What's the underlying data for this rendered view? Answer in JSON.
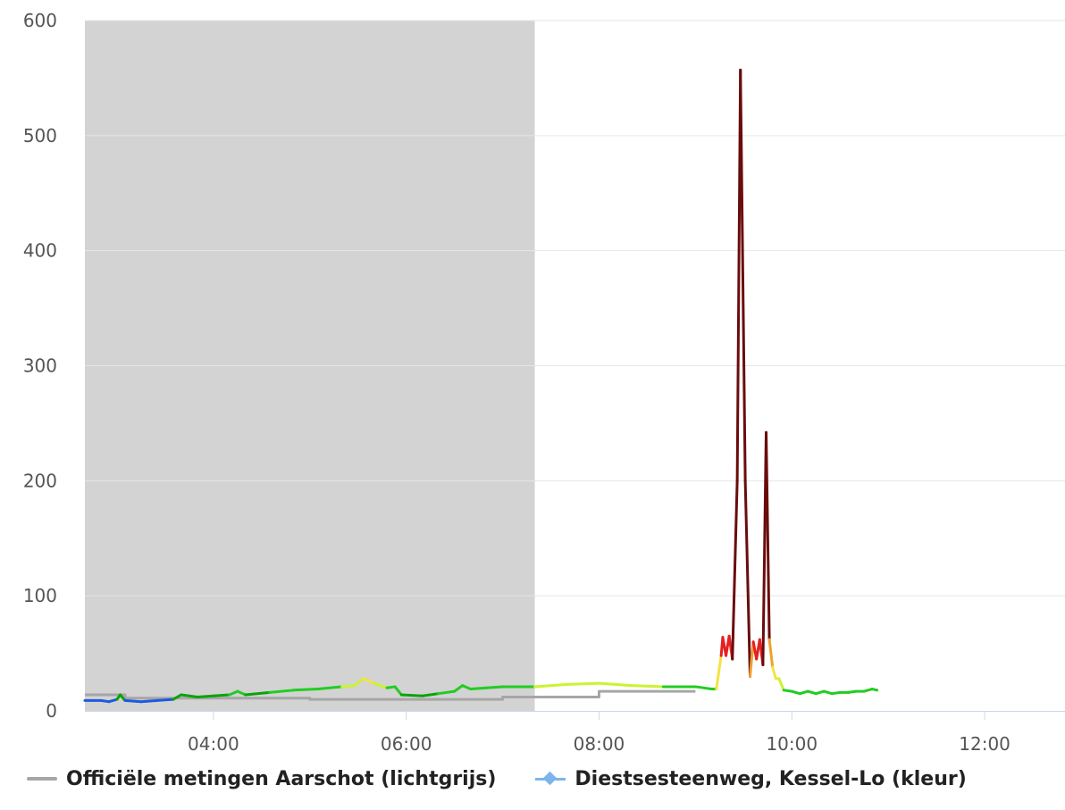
{
  "chart_data": {
    "type": "line",
    "title": "",
    "xlabel": "",
    "ylabel": "",
    "xlim": [
      "02:40",
      "12:50"
    ],
    "ylim": [
      0,
      600
    ],
    "y_ticks": [
      0,
      100,
      200,
      300,
      400,
      500,
      600
    ],
    "x_ticks": [
      "04:00",
      "06:00",
      "08:00",
      "10:00",
      "12:00"
    ],
    "grid": true,
    "night_band": {
      "from": "02:40",
      "to": "07:20",
      "color": "#d3d3d3"
    },
    "legend_position": "bottom",
    "series": [
      {
        "name": "Officiële metingen Aarschot (lichtgrijs)",
        "color": "#a6a6a6",
        "step": true,
        "points": [
          [
            "02:40",
            14
          ],
          [
            "03:05",
            14
          ],
          [
            "03:05",
            11
          ],
          [
            "05:00",
            11
          ],
          [
            "05:00",
            10
          ],
          [
            "07:00",
            10
          ],
          [
            "07:00",
            12
          ],
          [
            "08:00",
            12
          ],
          [
            "08:00",
            17
          ],
          [
            "09:00",
            17
          ]
        ]
      },
      {
        "name": "Diestsesteenweg, Kessel-Lo (kleur)",
        "marker_color": "#7cb5ec",
        "color_scale": [
          {
            "max": 10,
            "color": "#1a5be0"
          },
          {
            "max": 15,
            "color": "#0aa30a"
          },
          {
            "max": 21,
            "color": "#22cc22"
          },
          {
            "max": 25,
            "color": "#ccf230"
          },
          {
            "max": 35,
            "color": "#f2e442"
          },
          {
            "max": 50,
            "color": "#f0a030"
          },
          {
            "max": 70,
            "color": "#e52020"
          },
          {
            "max": 10000,
            "color": "#6a0c0c"
          }
        ],
        "points": [
          [
            "02:40",
            9
          ],
          [
            "02:50",
            9
          ],
          [
            "02:55",
            8
          ],
          [
            "03:00",
            10
          ],
          [
            "03:02",
            14
          ],
          [
            "03:05",
            9
          ],
          [
            "03:15",
            8
          ],
          [
            "03:25",
            9
          ],
          [
            "03:35",
            10
          ],
          [
            "03:40",
            14
          ],
          [
            "03:50",
            12
          ],
          [
            "04:00",
            13
          ],
          [
            "04:10",
            14
          ],
          [
            "04:15",
            17
          ],
          [
            "04:20",
            14
          ],
          [
            "04:35",
            16
          ],
          [
            "04:50",
            18
          ],
          [
            "05:05",
            19
          ],
          [
            "05:20",
            21
          ],
          [
            "05:28",
            22
          ],
          [
            "05:33",
            28
          ],
          [
            "05:40",
            24
          ],
          [
            "05:48",
            20
          ],
          [
            "05:53",
            21
          ],
          [
            "05:57",
            14
          ],
          [
            "06:10",
            13
          ],
          [
            "06:20",
            15
          ],
          [
            "06:30",
            17
          ],
          [
            "06:35",
            22
          ],
          [
            "06:40",
            19
          ],
          [
            "06:50",
            20
          ],
          [
            "07:00",
            21
          ],
          [
            "07:20",
            21
          ],
          [
            "07:40",
            23
          ],
          [
            "08:00",
            24
          ],
          [
            "08:20",
            22
          ],
          [
            "08:40",
            21
          ],
          [
            "09:00",
            21
          ],
          [
            "09:10",
            19
          ],
          [
            "09:13",
            19
          ],
          [
            "09:16",
            48
          ],
          [
            "09:17",
            64
          ],
          [
            "09:19",
            48
          ],
          [
            "09:21",
            65
          ],
          [
            "09:23",
            45
          ],
          [
            "09:26",
            200
          ],
          [
            "09:28",
            557
          ],
          [
            "09:31",
            200
          ],
          [
            "09:34",
            30
          ],
          [
            "09:36",
            60
          ],
          [
            "09:38",
            45
          ],
          [
            "09:40",
            62
          ],
          [
            "09:42",
            40
          ],
          [
            "09:44",
            242
          ],
          [
            "09:46",
            62
          ],
          [
            "09:48",
            38
          ],
          [
            "09:50",
            28
          ],
          [
            "09:52",
            28
          ],
          [
            "09:55",
            18
          ],
          [
            "10:00",
            17
          ],
          [
            "10:05",
            15
          ],
          [
            "10:10",
            17
          ],
          [
            "10:15",
            15
          ],
          [
            "10:20",
            17
          ],
          [
            "10:25",
            15
          ],
          [
            "10:30",
            16
          ],
          [
            "10:35",
            16
          ],
          [
            "10:40",
            17
          ],
          [
            "10:45",
            17
          ],
          [
            "10:50",
            19
          ],
          [
            "10:53",
            18
          ]
        ]
      }
    ]
  }
}
